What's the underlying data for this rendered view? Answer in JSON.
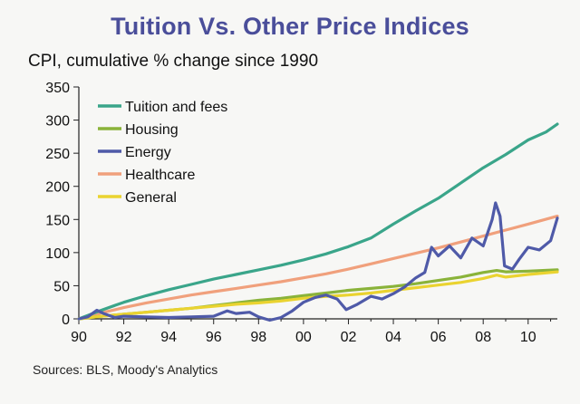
{
  "title": "Tuition Vs. Other Price Indices",
  "subtitle": "CPI, cumulative % change since 1990",
  "source": "Sources: BLS, Moody's Analytics",
  "chart_data": {
    "type": "line",
    "xlabel": "",
    "ylabel": "",
    "xlim": [
      1990,
      2011.3
    ],
    "ylim": [
      0,
      350
    ],
    "x_ticks": [
      "90",
      "92",
      "94",
      "96",
      "98",
      "00",
      "02",
      "04",
      "06",
      "08",
      "10"
    ],
    "y_ticks": [
      "0",
      "50",
      "100",
      "150",
      "200",
      "250",
      "300",
      "350"
    ],
    "grid": false,
    "legend_position": "top-left",
    "series": [
      {
        "name": "Tuition and fees",
        "color": "#3aa58a",
        "points": [
          [
            1990,
            0
          ],
          [
            1991,
            13
          ],
          [
            1992,
            25
          ],
          [
            1993,
            35
          ],
          [
            1994,
            44
          ],
          [
            1995,
            52
          ],
          [
            1996,
            60
          ],
          [
            1997,
            67
          ],
          [
            1998,
            74
          ],
          [
            1999,
            81
          ],
          [
            2000,
            89
          ],
          [
            2001,
            98
          ],
          [
            2002,
            109
          ],
          [
            2003,
            122
          ],
          [
            2004,
            143
          ],
          [
            2005,
            163
          ],
          [
            2006,
            182
          ],
          [
            2007,
            205
          ],
          [
            2008,
            228
          ],
          [
            2009,
            248
          ],
          [
            2010,
            270
          ],
          [
            2010.8,
            282
          ],
          [
            2011.3,
            294
          ]
        ]
      },
      {
        "name": "Housing",
        "color": "#8ab33a",
        "points": [
          [
            1990,
            0
          ],
          [
            1991,
            4
          ],
          [
            1992,
            7
          ],
          [
            1993,
            10
          ],
          [
            1994,
            13
          ],
          [
            1995,
            16
          ],
          [
            1996,
            20
          ],
          [
            1997,
            24
          ],
          [
            1998,
            28
          ],
          [
            1999,
            31
          ],
          [
            2000,
            35
          ],
          [
            2001,
            39
          ],
          [
            2002,
            43
          ],
          [
            2003,
            46
          ],
          [
            2004,
            49
          ],
          [
            2005,
            53
          ],
          [
            2006,
            58
          ],
          [
            2007,
            63
          ],
          [
            2008,
            70
          ],
          [
            2008.6,
            73
          ],
          [
            2009,
            71
          ],
          [
            2010,
            72
          ],
          [
            2011.3,
            74
          ]
        ]
      },
      {
        "name": "Energy",
        "color": "#4f5aa8",
        "points": [
          [
            1990,
            0
          ],
          [
            1990.4,
            3
          ],
          [
            1990.8,
            13
          ],
          [
            1991.1,
            8
          ],
          [
            1991.6,
            2
          ],
          [
            1992,
            4
          ],
          [
            1993,
            3
          ],
          [
            1994,
            2
          ],
          [
            1995,
            3
          ],
          [
            1996,
            4
          ],
          [
            1996.6,
            12
          ],
          [
            1997,
            8
          ],
          [
            1997.6,
            10
          ],
          [
            1998,
            3
          ],
          [
            1998.5,
            -2
          ],
          [
            1999,
            2
          ],
          [
            1999.5,
            12
          ],
          [
            2000,
            25
          ],
          [
            2000.5,
            32
          ],
          [
            2001,
            36
          ],
          [
            2001.5,
            30
          ],
          [
            2001.9,
            14
          ],
          [
            2002.4,
            22
          ],
          [
            2003,
            34
          ],
          [
            2003.5,
            30
          ],
          [
            2004,
            38
          ],
          [
            2004.5,
            48
          ],
          [
            2005,
            62
          ],
          [
            2005.4,
            70
          ],
          [
            2005.7,
            108
          ],
          [
            2006,
            95
          ],
          [
            2006.5,
            110
          ],
          [
            2007,
            92
          ],
          [
            2007.5,
            122
          ],
          [
            2008,
            110
          ],
          [
            2008.4,
            150
          ],
          [
            2008.55,
            175
          ],
          [
            2008.75,
            155
          ],
          [
            2008.95,
            80
          ],
          [
            2009.3,
            75
          ],
          [
            2009.6,
            90
          ],
          [
            2010,
            108
          ],
          [
            2010.5,
            104
          ],
          [
            2011,
            118
          ],
          [
            2011.3,
            152
          ]
        ]
      },
      {
        "name": "Healthcare",
        "color": "#f0a07c",
        "points": [
          [
            1990,
            0
          ],
          [
            1991,
            9
          ],
          [
            1992,
            17
          ],
          [
            1993,
            24
          ],
          [
            1994,
            30
          ],
          [
            1995,
            36
          ],
          [
            1996,
            41
          ],
          [
            1997,
            46
          ],
          [
            1998,
            51
          ],
          [
            1999,
            56
          ],
          [
            2000,
            62
          ],
          [
            2001,
            68
          ],
          [
            2002,
            75
          ],
          [
            2003,
            83
          ],
          [
            2004,
            91
          ],
          [
            2005,
            99
          ],
          [
            2006,
            107
          ],
          [
            2007,
            116
          ],
          [
            2008,
            125
          ],
          [
            2009,
            134
          ],
          [
            2010,
            143
          ],
          [
            2011.3,
            155
          ]
        ]
      },
      {
        "name": "General",
        "color": "#ead330",
        "points": [
          [
            1990,
            0
          ],
          [
            1991,
            4
          ],
          [
            1992,
            7
          ],
          [
            1993,
            10
          ],
          [
            1994,
            13
          ],
          [
            1995,
            16
          ],
          [
            1996,
            19
          ],
          [
            1997,
            22
          ],
          [
            1998,
            24
          ],
          [
            1999,
            27
          ],
          [
            2000,
            31
          ],
          [
            2001,
            34
          ],
          [
            2002,
            36
          ],
          [
            2003,
            39
          ],
          [
            2004,
            43
          ],
          [
            2005,
            47
          ],
          [
            2006,
            51
          ],
          [
            2007,
            55
          ],
          [
            2008,
            61
          ],
          [
            2008.6,
            66
          ],
          [
            2009,
            63
          ],
          [
            2010,
            67
          ],
          [
            2011.3,
            71
          ]
        ]
      }
    ]
  }
}
